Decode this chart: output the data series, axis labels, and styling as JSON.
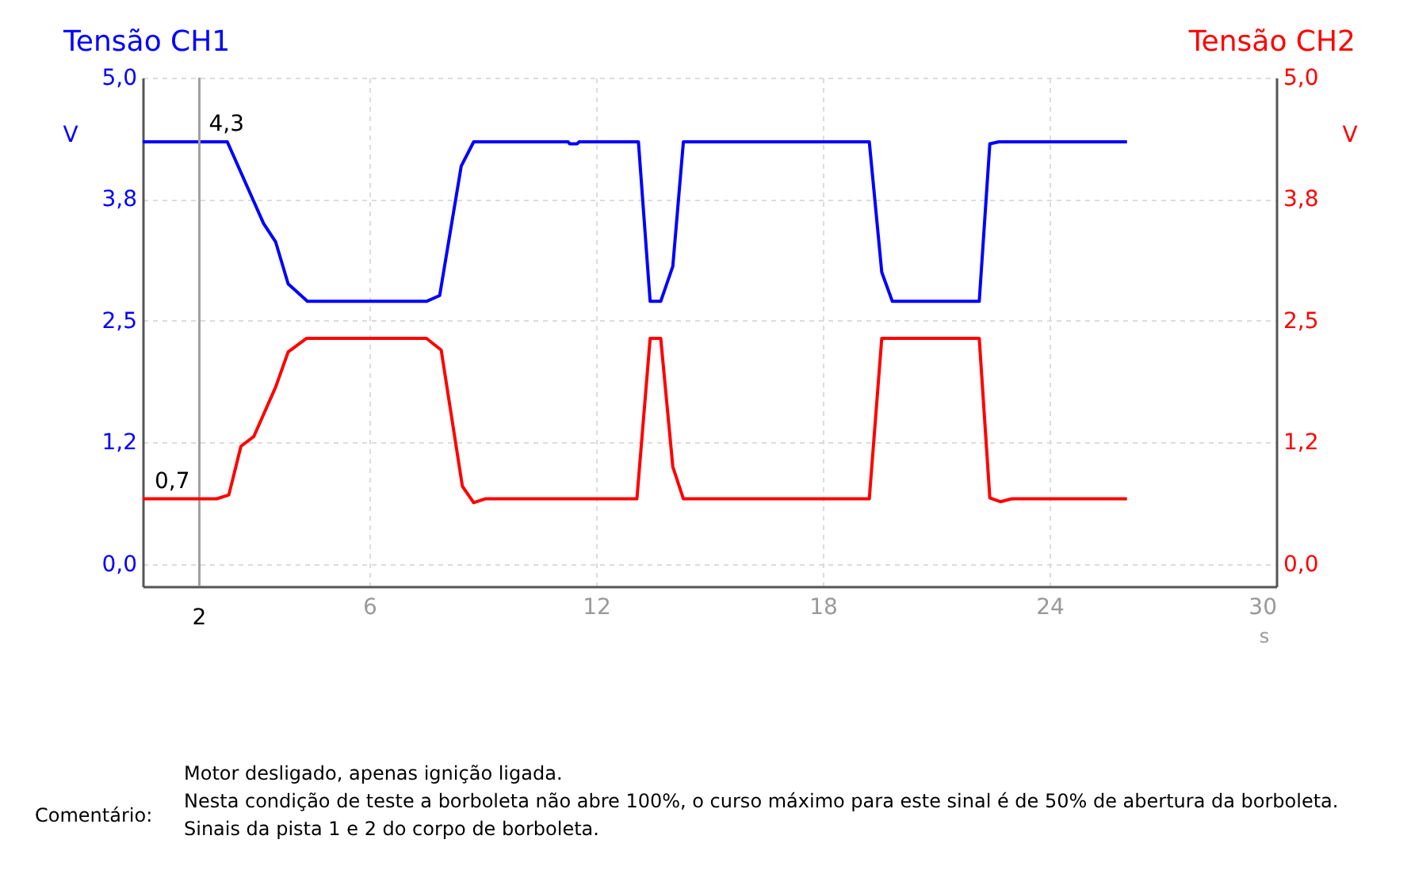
{
  "chart_data": {
    "type": "line",
    "xlabel": "s",
    "ylabel": "V",
    "y2label": "V",
    "xlim": [
      0,
      30
    ],
    "xticks": [
      6,
      12,
      18,
      24,
      30
    ],
    "ylim": [
      -0.23,
      5.0
    ],
    "yticks": [
      {
        "value": 0,
        "label": "0,0"
      },
      {
        "value": 1.25,
        "label": "1,2"
      },
      {
        "value": 2.5,
        "label": "2,5"
      },
      {
        "value": 3.75,
        "label": "3,8"
      },
      {
        "value": 5.0,
        "label": "5,0"
      }
    ],
    "y2lim": [
      -0.23,
      5.0
    ],
    "y2ticks": [
      {
        "value": 0,
        "label": "0,0"
      },
      {
        "value": 1.25,
        "label": "1,2"
      },
      {
        "value": 2.5,
        "label": "2,5"
      },
      {
        "value": 3.75,
        "label": "3,8"
      },
      {
        "value": 5.0,
        "label": "5,0"
      }
    ],
    "grid": true,
    "line_style": "solid",
    "series": [
      {
        "name": "Tensão CH1",
        "color": "#0000ff",
        "x": [
          0,
          2.24,
          3.2,
          3.52,
          3.85,
          4.36,
          7.51,
          7.86,
          8.43,
          8.76,
          11.26,
          11.3,
          11.5,
          11.55,
          13.12,
          13.43,
          13.71,
          14.03,
          14.31,
          19.23,
          19.56,
          19.84,
          22.14,
          22.42,
          22.66,
          26.05
        ],
        "values": [
          4.34,
          4.34,
          3.5,
          3.31,
          2.88,
          2.7,
          2.7,
          2.76,
          4.09,
          4.34,
          4.34,
          4.32,
          4.32,
          4.34,
          4.34,
          2.7,
          2.7,
          3.06,
          4.34,
          4.34,
          3.0,
          2.7,
          2.7,
          4.32,
          4.34,
          4.34
        ]
      },
      {
        "name": "Tensão CH2",
        "color": "#ff0000",
        "axis": "y2",
        "x": [
          0,
          1.96,
          2.28,
          2.6,
          2.94,
          3.52,
          3.85,
          4.34,
          7.51,
          7.9,
          8.46,
          8.76,
          9.06,
          13.08,
          13.43,
          13.71,
          14.03,
          14.31,
          19.23,
          19.56,
          22.14,
          22.42,
          22.7,
          23.0,
          26.05
        ],
        "values": [
          0.67,
          0.67,
          0.71,
          1.21,
          1.31,
          1.82,
          2.18,
          2.32,
          2.32,
          2.2,
          0.8,
          0.63,
          0.67,
          0.67,
          2.32,
          2.32,
          1.0,
          0.67,
          0.67,
          2.32,
          2.32,
          0.68,
          0.64,
          0.67,
          0.67
        ]
      }
    ],
    "ref_lines": [
      {
        "axis": "x",
        "value": 1.5,
        "label": "2",
        "color": "#a0a0a0"
      }
    ],
    "annotations": [
      {
        "text": "4,3",
        "x": 1.5,
        "y": 4.34
      },
      {
        "text": "0,7",
        "x": 1.5,
        "y": 0.67
      },
      "Comentário:",
      "Motor desligado, apenas ignição ligada.",
      "Nesta condição de teste a borboleta não abre 100%, o curso máximo para este sinal é de 50% de abertura da borboleta.",
      "Sinais da pista 1 e 2 do corpo de borboleta."
    ]
  }
}
